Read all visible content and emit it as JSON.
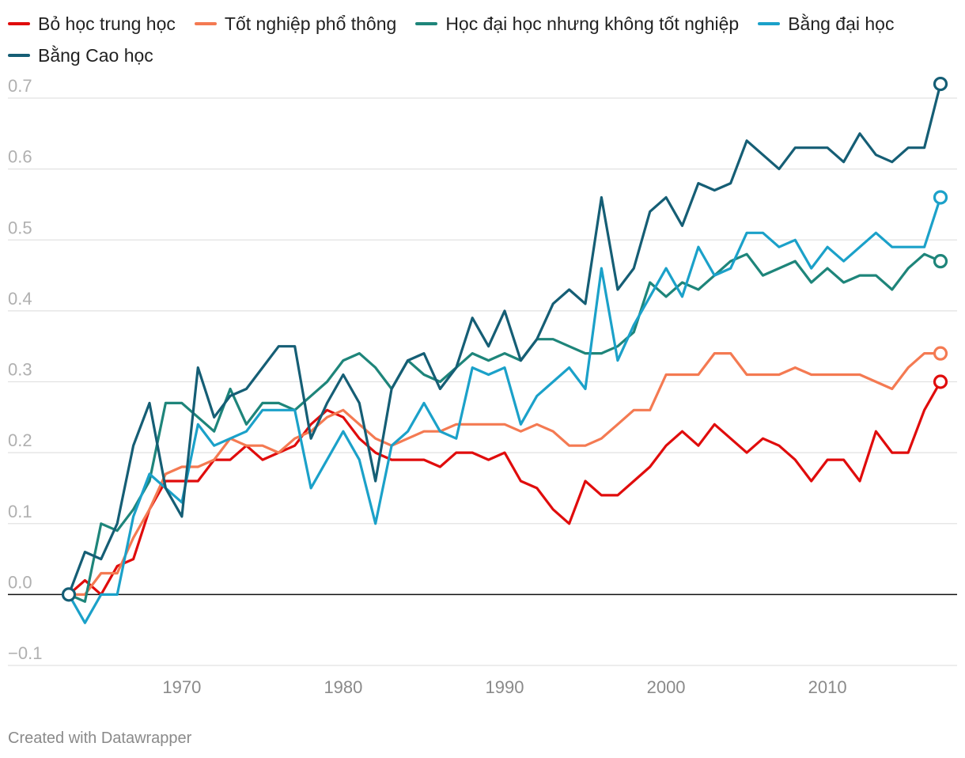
{
  "footer": {
    "credit": "Created with Datawrapper"
  },
  "chart_data": {
    "type": "line",
    "title": "",
    "xlabel": "",
    "ylabel": "",
    "xlim": [
      1963,
      2017
    ],
    "ylim": [
      -0.1,
      0.7
    ],
    "x_ticks": [
      1970,
      1980,
      1990,
      2000,
      2010
    ],
    "y_ticks": [
      -0.1,
      0.0,
      0.1,
      0.2,
      0.3,
      0.4,
      0.5,
      0.6,
      0.7
    ],
    "y_tick_labels": [
      "−0.1",
      "0.0",
      "0.1",
      "0.2",
      "0.3",
      "0.4",
      "0.5",
      "0.6",
      "0.7"
    ],
    "grid": true,
    "legend_position": "top-left",
    "x": [
      1963,
      1964,
      1965,
      1966,
      1967,
      1968,
      1969,
      1970,
      1971,
      1972,
      1973,
      1974,
      1975,
      1976,
      1977,
      1978,
      1979,
      1980,
      1981,
      1982,
      1983,
      1984,
      1985,
      1986,
      1987,
      1988,
      1989,
      1990,
      1991,
      1992,
      1993,
      1994,
      1995,
      1996,
      1997,
      1998,
      1999,
      2000,
      2001,
      2002,
      2003,
      2004,
      2005,
      2006,
      2007,
      2008,
      2009,
      2010,
      2011,
      2012,
      2013,
      2014,
      2015,
      2016,
      2017
    ],
    "series": [
      {
        "name": "Bỏ học trung học",
        "color": "#e00c0c",
        "values": [
          0,
          0.02,
          0,
          0.04,
          0.05,
          0.12,
          0.16,
          0.16,
          0.16,
          0.19,
          0.19,
          0.21,
          0.19,
          0.2,
          0.21,
          0.24,
          0.26,
          0.25,
          0.22,
          0.2,
          0.19,
          0.19,
          0.19,
          0.18,
          0.2,
          0.2,
          0.19,
          0.2,
          0.16,
          0.15,
          0.12,
          0.1,
          0.16,
          0.14,
          0.14,
          0.16,
          0.18,
          0.21,
          0.23,
          0.21,
          0.24,
          0.22,
          0.2,
          0.22,
          0.21,
          0.19,
          0.16,
          0.19,
          0.19,
          0.16,
          0.23,
          0.2,
          0.2,
          0.26,
          0.3
        ]
      },
      {
        "name": "Tốt nghiệp phổ thông",
        "color": "#f47a52",
        "values": [
          0,
          0,
          0.03,
          0.03,
          0.08,
          0.12,
          0.17,
          0.18,
          0.18,
          0.19,
          0.22,
          0.21,
          0.21,
          0.2,
          0.22,
          0.23,
          0.25,
          0.26,
          0.24,
          0.22,
          0.21,
          0.22,
          0.23,
          0.23,
          0.24,
          0.24,
          0.24,
          0.24,
          0.23,
          0.24,
          0.23,
          0.21,
          0.21,
          0.22,
          0.24,
          0.26,
          0.26,
          0.31,
          0.31,
          0.31,
          0.34,
          0.34,
          0.31,
          0.31,
          0.31,
          0.32,
          0.31,
          0.31,
          0.31,
          0.31,
          0.3,
          0.29,
          0.32,
          0.34,
          0.34
        ]
      },
      {
        "name": "Học đại học nhưng không tốt nghiệp",
        "color": "#1e857a",
        "values": [
          0,
          -0.01,
          0.1,
          0.09,
          0.12,
          0.16,
          0.27,
          0.27,
          0.25,
          0.23,
          0.29,
          0.24,
          0.27,
          0.27,
          0.26,
          0.28,
          0.3,
          0.33,
          0.34,
          0.32,
          0.29,
          0.33,
          0.31,
          0.3,
          0.32,
          0.34,
          0.33,
          0.34,
          0.33,
          0.36,
          0.36,
          0.35,
          0.34,
          0.34,
          0.35,
          0.37,
          0.44,
          0.42,
          0.44,
          0.43,
          0.45,
          0.47,
          0.48,
          0.45,
          0.46,
          0.47,
          0.44,
          0.46,
          0.44,
          0.45,
          0.45,
          0.43,
          0.46,
          0.48,
          0.47
        ]
      },
      {
        "name": "Bằng đại học",
        "color": "#1ba1c9",
        "values": [
          0,
          -0.04,
          0,
          0,
          0.11,
          0.17,
          0.15,
          0.13,
          0.24,
          0.21,
          0.22,
          0.23,
          0.26,
          0.26,
          0.26,
          0.15,
          0.19,
          0.23,
          0.19,
          0.1,
          0.21,
          0.23,
          0.27,
          0.23,
          0.22,
          0.32,
          0.31,
          0.32,
          0.24,
          0.28,
          0.3,
          0.32,
          0.29,
          0.46,
          0.33,
          0.38,
          0.42,
          0.46,
          0.42,
          0.49,
          0.45,
          0.46,
          0.51,
          0.51,
          0.49,
          0.5,
          0.46,
          0.49,
          0.47,
          0.49,
          0.51,
          0.49,
          0.49,
          0.49,
          0.56
        ]
      },
      {
        "name": "Bằng Cao học",
        "color": "#155e75",
        "values": [
          0,
          0.06,
          0.05,
          0.1,
          0.21,
          0.27,
          0.15,
          0.11,
          0.32,
          0.25,
          0.28,
          0.29,
          0.32,
          0.35,
          0.35,
          0.22,
          0.27,
          0.31,
          0.27,
          0.16,
          0.29,
          0.33,
          0.34,
          0.29,
          0.32,
          0.39,
          0.35,
          0.4,
          0.33,
          0.36,
          0.41,
          0.43,
          0.41,
          0.56,
          0.43,
          0.46,
          0.54,
          0.56,
          0.52,
          0.58,
          0.57,
          0.58,
          0.64,
          0.62,
          0.6,
          0.63,
          0.63,
          0.63,
          0.61,
          0.65,
          0.62,
          0.61,
          0.63,
          0.63,
          0.72
        ]
      }
    ]
  }
}
